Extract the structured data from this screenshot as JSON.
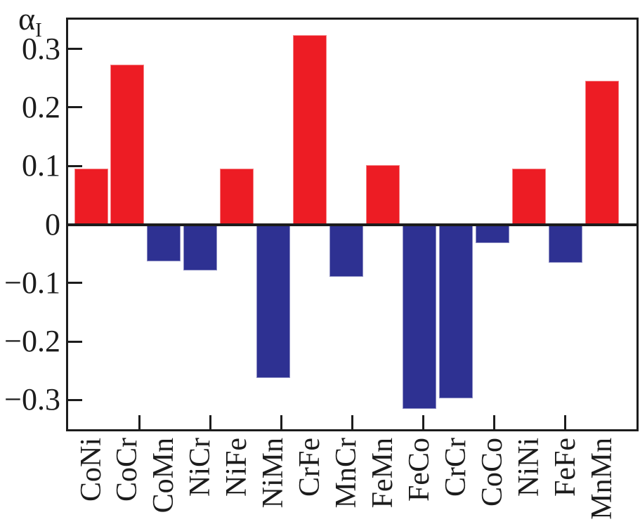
{
  "figure": {
    "ylabel_main": "α",
    "ylabel_sub": "I"
  },
  "chart_data": {
    "type": "bar",
    "title": "",
    "xlabel": "",
    "ylabel": "α_I",
    "categories": [
      "CoNi",
      "CoCr",
      "CoMn",
      "NiCr",
      "NiFe",
      "NiMn",
      "CrFe",
      "MnCr",
      "FeMn",
      "FeCo",
      "CrCr",
      "CoCo",
      "NiNi",
      "FeFe",
      "MnMn"
    ],
    "values": [
      0.096,
      0.273,
      -0.063,
      -0.079,
      0.095,
      -0.262,
      0.324,
      -0.09,
      0.101,
      -0.315,
      -0.297,
      -0.032,
      0.095,
      -0.066,
      0.246
    ],
    "positive_color": "#ED1C24",
    "negative_color": "#2E3192",
    "axis_color": "#1C1C1C",
    "background_color": "#FFFFFF",
    "ylim": [
      -0.35,
      0.35
    ],
    "yticks": [
      0.3,
      0.2,
      0.1,
      0,
      -0.1,
      -0.2,
      -0.3
    ],
    "ytick_labels": [
      "0.3",
      "0.2",
      "0.1",
      "0",
      "−0.1",
      "−0.2",
      "−0.3"
    ],
    "x_axis_segments": 8,
    "grid": false,
    "legend": false,
    "zero_line": true,
    "x_labels_rotation_deg": 90
  }
}
